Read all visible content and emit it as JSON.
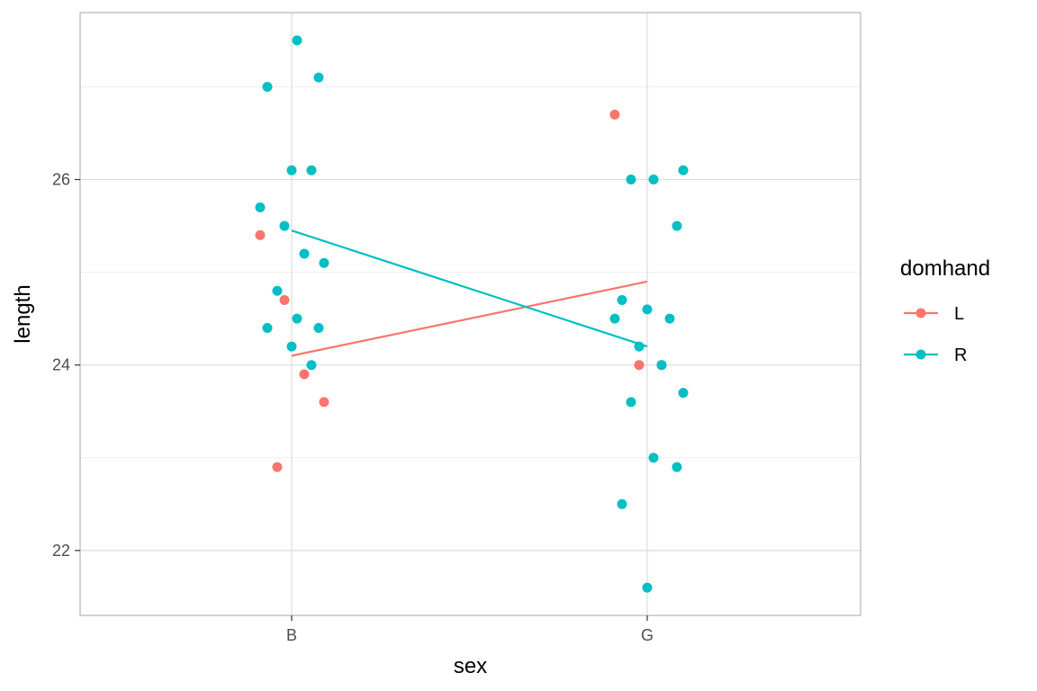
{
  "chart_data": {
    "type": "scatter",
    "xlabel": "sex",
    "ylabel": "length",
    "categories": [
      "B",
      "G"
    ],
    "y_ticks": [
      22,
      24,
      26
    ],
    "ylim": [
      21.3,
      27.8
    ],
    "grid": true,
    "legend": {
      "title": "domhand",
      "position": "right"
    },
    "series": [
      {
        "name": "L",
        "color": "#F8766D",
        "points": [
          {
            "x": "B",
            "y": 25.4
          },
          {
            "x": "B",
            "y": 24.7
          },
          {
            "x": "B",
            "y": 23.9
          },
          {
            "x": "B",
            "y": 23.6
          },
          {
            "x": "B",
            "y": 22.9
          },
          {
            "x": "G",
            "y": 26.7
          },
          {
            "x": "G",
            "y": 24.0
          },
          {
            "x": "G",
            "y": 24.0
          }
        ],
        "mean_line": [
          {
            "x": "B",
            "y": 24.1
          },
          {
            "x": "G",
            "y": 24.9
          }
        ]
      },
      {
        "name": "R",
        "color": "#00BFC4",
        "points": [
          {
            "x": "B",
            "y": 27.5
          },
          {
            "x": "B",
            "y": 27.1
          },
          {
            "x": "B",
            "y": 27.0
          },
          {
            "x": "B",
            "y": 26.1
          },
          {
            "x": "B",
            "y": 26.1
          },
          {
            "x": "B",
            "y": 25.7
          },
          {
            "x": "B",
            "y": 25.5
          },
          {
            "x": "B",
            "y": 25.2
          },
          {
            "x": "B",
            "y": 25.1
          },
          {
            "x": "B",
            "y": 24.8
          },
          {
            "x": "B",
            "y": 24.5
          },
          {
            "x": "B",
            "y": 24.4
          },
          {
            "x": "B",
            "y": 24.4
          },
          {
            "x": "B",
            "y": 24.2
          },
          {
            "x": "B",
            "y": 24.0
          },
          {
            "x": "G",
            "y": 26.1
          },
          {
            "x": "G",
            "y": 26.0
          },
          {
            "x": "G",
            "y": 26.0
          },
          {
            "x": "G",
            "y": 25.5
          },
          {
            "x": "G",
            "y": 24.7
          },
          {
            "x": "G",
            "y": 24.6
          },
          {
            "x": "G",
            "y": 24.5
          },
          {
            "x": "G",
            "y": 24.5
          },
          {
            "x": "G",
            "y": 24.2
          },
          {
            "x": "G",
            "y": 24.0
          },
          {
            "x": "G",
            "y": 23.7
          },
          {
            "x": "G",
            "y": 23.6
          },
          {
            "x": "G",
            "y": 23.0
          },
          {
            "x": "G",
            "y": 22.9
          },
          {
            "x": "G",
            "y": 22.5
          },
          {
            "x": "G",
            "y": 21.6
          }
        ],
        "mean_line": [
          {
            "x": "B",
            "y": 25.45
          },
          {
            "x": "G",
            "y": 24.2
          }
        ]
      }
    ]
  }
}
